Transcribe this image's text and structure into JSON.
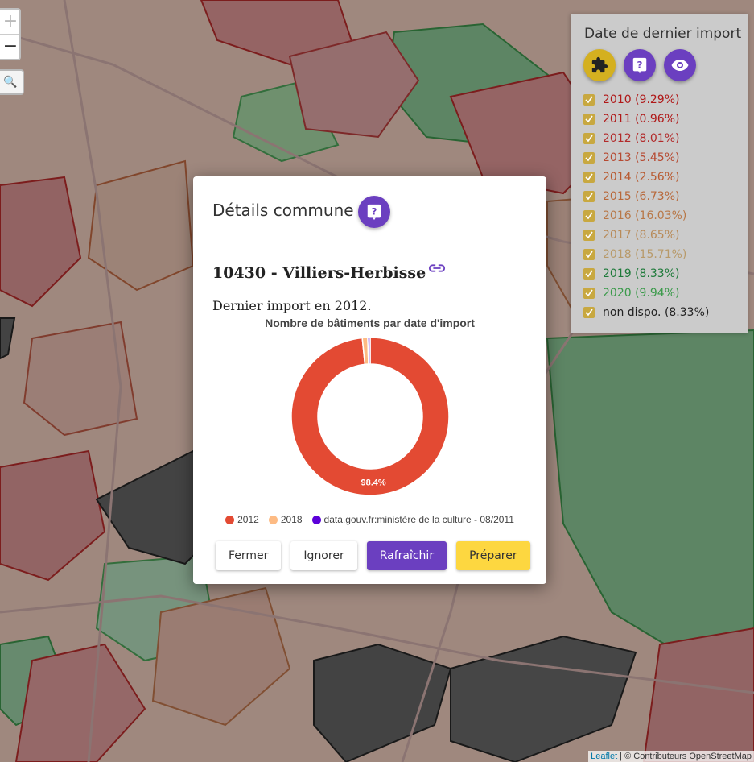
{
  "map": {
    "zoom_in": "+",
    "zoom_out": "−",
    "search": "🔍",
    "attribution_link": "Leaflet",
    "attribution_text": " | © Contributeurs OpenStreetMap"
  },
  "legend": {
    "title": "Date de dernier import",
    "buttons": [
      {
        "icon": "puzzle-icon",
        "color": "#d4b020"
      },
      {
        "icon": "help-icon",
        "color": "#6b3fc0"
      },
      {
        "icon": "eye-icon",
        "color": "#6b3fc0"
      }
    ],
    "items": [
      {
        "label": "2010 (9.29%)",
        "color": "#b01818"
      },
      {
        "label": "2011 (0.96%)",
        "color": "#b01818"
      },
      {
        "label": "2012 (8.01%)",
        "color": "#b22a2a"
      },
      {
        "label": "2013 (5.45%)",
        "color": "#b64a32"
      },
      {
        "label": "2014 (2.56%)",
        "color": "#b85a30"
      },
      {
        "label": "2015 (6.73%)",
        "color": "#b8683a"
      },
      {
        "label": "2016 (16.03%)",
        "color": "#b87848"
      },
      {
        "label": "2017 (8.65%)",
        "color": "#b88a58"
      },
      {
        "label": "2018 (15.71%)",
        "color": "#b89a6a"
      },
      {
        "label": "2019 (8.33%)",
        "color": "#1e7a3a"
      },
      {
        "label": "2020 (9.94%)",
        "color": "#3a9a4a"
      },
      {
        "label": "non dispo. (8.33%)",
        "color": "#222222"
      }
    ]
  },
  "modal": {
    "title": "Détails commune",
    "commune": "10430 - Villiers-Herbisse",
    "import_text": "Dernier import en 2012.",
    "buttons": {
      "close": "Fermer",
      "ignore": "Ignorer",
      "refresh": "Rafraîchir",
      "prepare": "Préparer"
    }
  },
  "chart_data": {
    "type": "pie",
    "title": "Nombre de bâtiments par date d'import",
    "categories": [
      "2012",
      "2018",
      "data.gouv.fr:ministère de la culture - 08/2011"
    ],
    "values": [
      98.4,
      1.1,
      0.5
    ],
    "colors": [
      "#e34a33",
      "#fdbb84",
      "#5b00d9"
    ],
    "data_labels": [
      "98.4%",
      "",
      ""
    ],
    "legend_position": "bottom"
  }
}
